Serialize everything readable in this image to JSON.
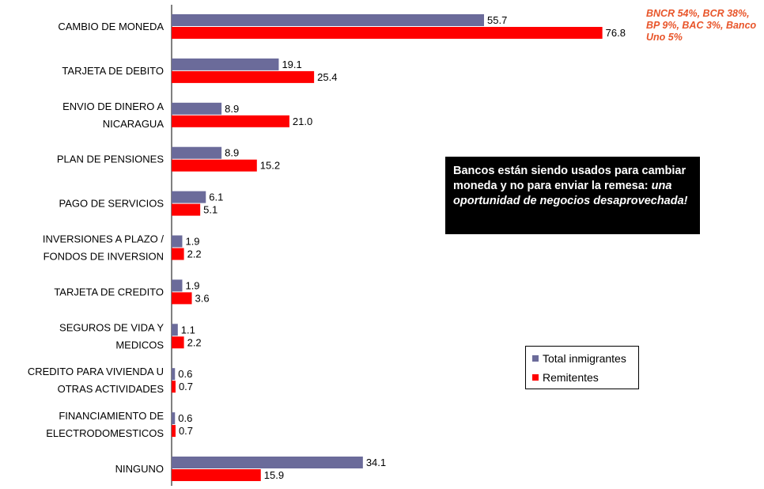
{
  "chart_data": {
    "type": "bar",
    "orientation": "horizontal",
    "categories": [
      [
        "CAMBIO DE MONEDA"
      ],
      [
        "TARJETA DE DEBITO"
      ],
      [
        "ENVIO DE DINERO A",
        "NICARAGUA"
      ],
      [
        "PLAN DE PENSIONES"
      ],
      [
        "PAGO DE SERVICIOS"
      ],
      [
        "INVERSIONES A PLAZO /",
        "FONDOS DE INVERSION"
      ],
      [
        "TARJETA DE CREDITO"
      ],
      [
        "SEGUROS DE VIDA Y",
        "MEDICOS"
      ],
      [
        "CREDITO PARA VIVIENDA U",
        "OTRAS ACTIVIDADES"
      ],
      [
        "FINANCIAMIENTO DE",
        "ELECTRODOMESTICOS"
      ],
      [
        "NINGUNO"
      ]
    ],
    "series": [
      {
        "name": "Total inmigrantes",
        "color": "#6b6b9a",
        "values": [
          55.7,
          19.1,
          8.9,
          8.9,
          6.1,
          1.9,
          1.9,
          1.1,
          0.6,
          0.6,
          34.1
        ],
        "labels": [
          "55.7",
          "19.1",
          "8.9",
          "8.9",
          "6.1",
          "1.9",
          "1.9",
          "1.1",
          "0.6",
          "0.6",
          "34.1"
        ]
      },
      {
        "name": "Remitentes",
        "color": "#ff0000",
        "values": [
          76.8,
          25.4,
          21.0,
          15.2,
          5.1,
          2.2,
          3.6,
          2.2,
          0.7,
          0.7,
          15.9
        ],
        "labels": [
          "76.8",
          "25.4",
          "21.0",
          "15.2",
          "5.1",
          "2.2",
          "3.6",
          "2.2",
          "0.7",
          "0.7",
          "15.9"
        ]
      }
    ],
    "xlim": [
      0,
      80
    ],
    "grid": false,
    "legend_position": "bottom-right"
  },
  "annotation": {
    "callout_lines": [
      "BNCR 54%, BCR 38%,",
      "BP 9%, BAC 3%, Banco",
      "Uno 5%"
    ],
    "callout_color": "#e8552a",
    "note_lead": "Bancos están siendo usados para cambiar moneda y no para enviar la remesa: ",
    "note_emphasis": "una oportunidad de negocios desaprovechada!"
  },
  "legend": {
    "items": [
      {
        "label": "Total inmigrantes",
        "color": "#6b6b9a"
      },
      {
        "label": "Remitentes",
        "color": "#ff0000"
      }
    ]
  }
}
